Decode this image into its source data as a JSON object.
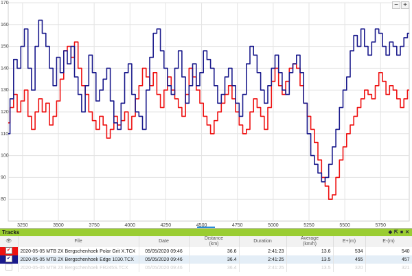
{
  "chart_data": {
    "type": "line",
    "xlim": [
      3150,
      5950
    ],
    "ylim": [
      70,
      170
    ],
    "x_ticks": [
      "3250",
      "3500",
      "3750",
      "4000",
      "4250",
      "4500",
      "4750",
      "5000",
      "5250",
      "5500",
      "5750"
    ],
    "y_ticks": [
      "80",
      "90",
      "100",
      "110",
      "120",
      "130",
      "140",
      "150",
      "160",
      "170"
    ],
    "grid": true,
    "series": [
      {
        "name": "2020-05-05 MTB 2X Bergschenhoek Polar Grit X.TCX",
        "color": "#ee1111",
        "x": [
          3150,
          3175,
          3200,
          3225,
          3250,
          3275,
          3300,
          3325,
          3350,
          3375,
          3400,
          3425,
          3450,
          3475,
          3500,
          3525,
          3550,
          3575,
          3600,
          3625,
          3650,
          3675,
          3700,
          3725,
          3750,
          3775,
          3800,
          3825,
          3850,
          3875,
          3900,
          3925,
          3950,
          3975,
          4000,
          4025,
          4050,
          4075,
          4100,
          4125,
          4150,
          4175,
          4200,
          4225,
          4250,
          4275,
          4300,
          4325,
          4350,
          4375,
          4400,
          4425,
          4450,
          4475,
          4500,
          4525,
          4550,
          4575,
          4600,
          4625,
          4650,
          4675,
          4700,
          4725,
          4750,
          4775,
          4800,
          4825,
          4850,
          4875,
          4900,
          4925,
          4950,
          4975,
          5000,
          5025,
          5050,
          5075,
          5100,
          5125,
          5150,
          5175,
          5200,
          5225,
          5250,
          5275,
          5300,
          5325,
          5350,
          5375,
          5400,
          5425,
          5450,
          5475,
          5500,
          5525,
          5550,
          5575,
          5600,
          5625,
          5650,
          5675,
          5700,
          5725,
          5750,
          5775,
          5800,
          5825,
          5850,
          5875,
          5900,
          5925,
          5950
        ],
        "y": [
          115,
          122,
          128,
          120,
          125,
          130,
          118,
          112,
          120,
          126,
          120,
          124,
          114,
          118,
          125,
          135,
          148,
          150,
          145,
          152,
          140,
          132,
          128,
          120,
          116,
          112,
          118,
          114,
          108,
          112,
          118,
          114,
          116,
          120,
          112,
          118,
          126,
          132,
          140,
          136,
          132,
          138,
          128,
          122,
          130,
          136,
          130,
          126,
          122,
          118,
          128,
          140,
          136,
          130,
          124,
          118,
          114,
          110,
          116,
          120,
          124,
          128,
          132,
          126,
          120,
          114,
          110,
          112,
          120,
          126,
          122,
          118,
          112,
          122,
          134,
          140,
          132,
          128,
          134,
          140,
          142,
          140,
          132,
          124,
          118,
          112,
          106,
          98,
          90,
          86,
          80,
          82,
          90,
          98,
          104,
          110,
          114,
          118,
          122,
          126,
          130,
          128,
          126,
          132,
          138,
          134,
          128,
          132,
          130,
          126,
          122,
          126,
          130
        ],
        "style": "red"
      },
      {
        "name": "2020-05-05 MTB 2X Bergschenhoek Edge 1030.TCX",
        "color": "#1a1a8c",
        "x": [
          3150,
          3175,
          3200,
          3225,
          3250,
          3275,
          3300,
          3325,
          3350,
          3375,
          3400,
          3425,
          3450,
          3475,
          3500,
          3525,
          3550,
          3575,
          3600,
          3625,
          3650,
          3675,
          3700,
          3725,
          3750,
          3775,
          3800,
          3825,
          3850,
          3875,
          3900,
          3925,
          3950,
          3975,
          4000,
          4025,
          4050,
          4075,
          4100,
          4125,
          4150,
          4175,
          4200,
          4225,
          4250,
          4275,
          4300,
          4325,
          4350,
          4375,
          4400,
          4425,
          4450,
          4475,
          4500,
          4525,
          4550,
          4575,
          4600,
          4625,
          4650,
          4675,
          4700,
          4725,
          4750,
          4775,
          4800,
          4825,
          4850,
          4875,
          4900,
          4925,
          4950,
          4975,
          5000,
          5025,
          5050,
          5075,
          5100,
          5125,
          5150,
          5175,
          5200,
          5225,
          5250,
          5275,
          5300,
          5325,
          5350,
          5375,
          5400,
          5425,
          5450,
          5475,
          5500,
          5525,
          5550,
          5575,
          5600,
          5625,
          5650,
          5675,
          5700,
          5725,
          5750,
          5775,
          5800,
          5825,
          5850,
          5875,
          5900,
          5925,
          5950
        ],
        "y": [
          110,
          126,
          144,
          140,
          150,
          158,
          140,
          130,
          150,
          162,
          156,
          150,
          140,
          132,
          145,
          138,
          148,
          142,
          150,
          136,
          128,
          120,
          132,
          146,
          138,
          125,
          130,
          135,
          140,
          125,
          115,
          112,
          124,
          138,
          142,
          128,
          120,
          118,
          112,
          130,
          145,
          156,
          158,
          148,
          140,
          132,
          128,
          140,
          148,
          136,
          124,
          132,
          142,
          132,
          138,
          148,
          144,
          140,
          132,
          124,
          128,
          136,
          140,
          132,
          124,
          118,
          128,
          142,
          150,
          146,
          138,
          130,
          124,
          132,
          140,
          146,
          138,
          130,
          128,
          138,
          142,
          146,
          138,
          124,
          110,
          100,
          96,
          92,
          88,
          90,
          96,
          104,
          112,
          122,
          130,
          136,
          148,
          155,
          150,
          158,
          150,
          146,
          152,
          158,
          156,
          150,
          146,
          152,
          150,
          146,
          150,
          154,
          156
        ],
        "style": "navy"
      }
    ]
  },
  "ui": {
    "zoom_out_label": "−",
    "zoom_in_label": "+",
    "panel_title": "Tracks",
    "panel_icons": [
      "◆",
      "⇱",
      "■",
      "✕"
    ]
  },
  "table": {
    "headers": {
      "file": "File",
      "date": "Date",
      "distance": "Distance",
      "distance_unit": "(km)",
      "duration": "Duration",
      "average": "Average",
      "average_unit": "(km/h)",
      "e_plus": "E+(m)",
      "e_minus": "E-(m)"
    },
    "rows": [
      {
        "swatch": "#ee1111",
        "checked": true,
        "file": "2020-05-05 MTB 2X Bergschenhoek Polar Grit X.TCX",
        "date": "05/05/2020 09:46",
        "distance": "36.6",
        "duration": "2:41:23",
        "average": "13.6",
        "e_plus": "534",
        "e_minus": "540"
      },
      {
        "swatch": "#1a1a8c",
        "checked": true,
        "file": "2020-05-05 MTB 2X Bergschenhoek Edge 1030.TCX",
        "date": "05/05/2020 09:46",
        "distance": "36.4",
        "duration": "2:41:25",
        "average": "13.5",
        "e_plus": "455",
        "e_minus": "457"
      },
      {
        "swatch": "#ffffff",
        "checked": false,
        "file": "2020-05-05 MTB 2X Bergschenhoek FR245S.TCX",
        "date": "05/05/2020 09:46",
        "distance": "36.4",
        "duration": "2:41:25",
        "average": "13.5",
        "e_plus": "320",
        "e_minus": "321"
      }
    ]
  }
}
